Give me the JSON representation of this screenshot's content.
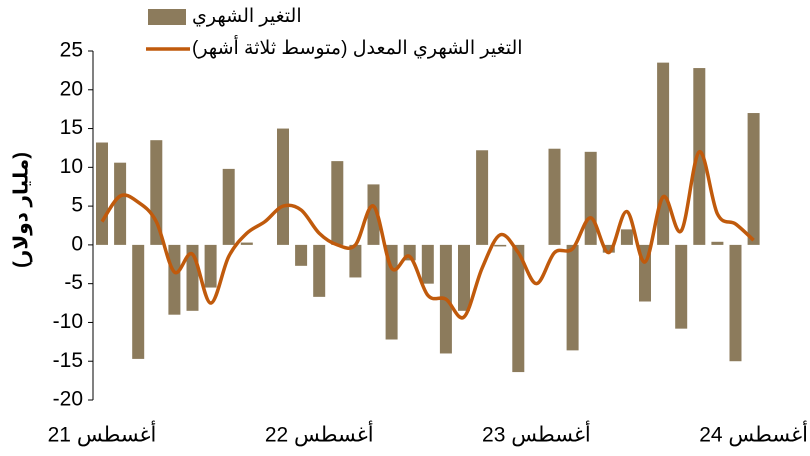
{
  "chart_data": {
    "type": "bar_line",
    "y_axis_label": "(مليار دولار)",
    "categories": [
      "أغسطس 21",
      null,
      null,
      null,
      null,
      null,
      null,
      null,
      null,
      null,
      null,
      null,
      "أغسطس 22",
      null,
      null,
      null,
      null,
      null,
      null,
      null,
      null,
      null,
      null,
      null,
      "أغسطس 23",
      null,
      null,
      null,
      null,
      null,
      null,
      null,
      null,
      null,
      null,
      null,
      "أغسطس 24"
    ],
    "series": [
      {
        "name": "التغير الشهري",
        "type": "bar",
        "color": "#8c7b5c",
        "values": [
          13.2,
          10.6,
          -14.7,
          13.5,
          -9,
          -8.5,
          -5.5,
          9.8,
          0.3,
          0,
          15,
          -2.7,
          -6.7,
          10.8,
          -4.2,
          7.8,
          -12.2,
          -2,
          -5,
          -14,
          -8.5,
          12.2,
          -0.2,
          -16.4,
          0,
          12.4,
          -13.6,
          12,
          -1,
          2,
          -7.3,
          23.5,
          -10.8,
          22.8,
          0.4,
          -15,
          17
        ]
      },
      {
        "name": "التغير الشهري المعدل (متوسط ثلاثة أشهر)",
        "type": "line",
        "color": "#c05a0c",
        "values": [
          3,
          6.3,
          5.5,
          3,
          -3.5,
          -1.2,
          -7.5,
          -1.5,
          1.5,
          3,
          5,
          4.5,
          1.5,
          0,
          0,
          5,
          -3,
          -1.5,
          -6.5,
          -7,
          -9.3,
          -3,
          1.3,
          -1,
          -5,
          -1,
          -0.5,
          3.5,
          -1,
          4.3,
          -2.2,
          6.2,
          1.8,
          12,
          4,
          2.7,
          0.6
        ]
      }
    ],
    "ylim": [
      -20,
      25
    ],
    "yticks": [
      -20,
      -15,
      -10,
      -5,
      0,
      5,
      10,
      15,
      20,
      25
    ]
  }
}
